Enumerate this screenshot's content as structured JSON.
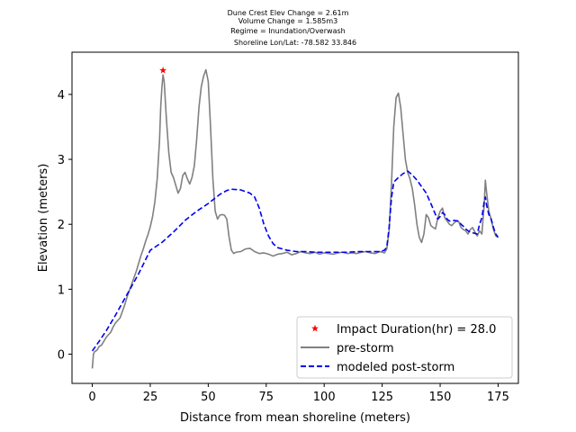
{
  "chart_data": {
    "type": "line",
    "title_lines": [
      "Dune Crest Elev Change = 2.61m",
      "Volume Change = 1.585m3",
      "Regime = Inundation/Overwash",
      "Shoreline Lon/Lat: -78.582 33.846"
    ],
    "xlabel": "Distance from mean shoreline (meters)",
    "ylabel": "Elevation (meters)",
    "xlim": [
      -8.75,
      183.75
    ],
    "ylim": [
      -0.45,
      4.65
    ],
    "x_ticks": [
      0,
      25,
      50,
      75,
      100,
      125,
      150,
      175
    ],
    "y_ticks": [
      0,
      1,
      2,
      3,
      4
    ],
    "legend_position": "lower right",
    "colors": {
      "pre_storm": "#808080",
      "post_storm": "#0000ee",
      "marker": "#ff0000"
    },
    "series": [
      {
        "name": "pre-storm",
        "style": "solid",
        "points": [
          [
            0,
            -0.22
          ],
          [
            0.5,
            0.0
          ],
          [
            1,
            0.04
          ],
          [
            2,
            0.06
          ],
          [
            3,
            0.12
          ],
          [
            4,
            0.14
          ],
          [
            5,
            0.2
          ],
          [
            6,
            0.26
          ],
          [
            7,
            0.3
          ],
          [
            8,
            0.34
          ],
          [
            9,
            0.42
          ],
          [
            10,
            0.48
          ],
          [
            11,
            0.52
          ],
          [
            12,
            0.56
          ],
          [
            13,
            0.66
          ],
          [
            14,
            0.76
          ],
          [
            15,
            0.88
          ],
          [
            16,
            0.98
          ],
          [
            17,
            1.08
          ],
          [
            18,
            1.18
          ],
          [
            19,
            1.28
          ],
          [
            20,
            1.4
          ],
          [
            21,
            1.52
          ],
          [
            22,
            1.62
          ],
          [
            23,
            1.74
          ],
          [
            24,
            1.84
          ],
          [
            25,
            1.96
          ],
          [
            26,
            2.12
          ],
          [
            27,
            2.35
          ],
          [
            28,
            2.7
          ],
          [
            29,
            3.3
          ],
          [
            29.5,
            3.8
          ],
          [
            30,
            4.1
          ],
          [
            30.5,
            4.3
          ],
          [
            31,
            4.2
          ],
          [
            32,
            3.6
          ],
          [
            33,
            3.1
          ],
          [
            34,
            2.8
          ],
          [
            35,
            2.72
          ],
          [
            36,
            2.6
          ],
          [
            37,
            2.48
          ],
          [
            38,
            2.55
          ],
          [
            39,
            2.75
          ],
          [
            40,
            2.8
          ],
          [
            41,
            2.7
          ],
          [
            42,
            2.62
          ],
          [
            43,
            2.72
          ],
          [
            44,
            2.9
          ],
          [
            45,
            3.3
          ],
          [
            46,
            3.8
          ],
          [
            47,
            4.12
          ],
          [
            48,
            4.28
          ],
          [
            49,
            4.38
          ],
          [
            50,
            4.2
          ],
          [
            51,
            3.5
          ],
          [
            52,
            2.7
          ],
          [
            53,
            2.2
          ],
          [
            54,
            2.08
          ],
          [
            55,
            2.14
          ],
          [
            56,
            2.15
          ],
          [
            57,
            2.14
          ],
          [
            58,
            2.08
          ],
          [
            59,
            1.8
          ],
          [
            60,
            1.6
          ],
          [
            61,
            1.55
          ],
          [
            62,
            1.57
          ],
          [
            64,
            1.58
          ],
          [
            66,
            1.62
          ],
          [
            68,
            1.63
          ],
          [
            70,
            1.58
          ],
          [
            72,
            1.55
          ],
          [
            74,
            1.56
          ],
          [
            76,
            1.54
          ],
          [
            78,
            1.51
          ],
          [
            80,
            1.54
          ],
          [
            82,
            1.55
          ],
          [
            84,
            1.57
          ],
          [
            86,
            1.53
          ],
          [
            88,
            1.55
          ],
          [
            90,
            1.58
          ],
          [
            92,
            1.56
          ],
          [
            94,
            1.55
          ],
          [
            96,
            1.57
          ],
          [
            98,
            1.54
          ],
          [
            100,
            1.56
          ],
          [
            102,
            1.55
          ],
          [
            104,
            1.54
          ],
          [
            106,
            1.56
          ],
          [
            108,
            1.57
          ],
          [
            110,
            1.55
          ],
          [
            112,
            1.56
          ],
          [
            114,
            1.55
          ],
          [
            116,
            1.57
          ],
          [
            118,
            1.58
          ],
          [
            120,
            1.56
          ],
          [
            122,
            1.55
          ],
          [
            124,
            1.58
          ],
          [
            126,
            1.56
          ],
          [
            127,
            1.62
          ],
          [
            128,
            1.9
          ],
          [
            129,
            2.6
          ],
          [
            130,
            3.5
          ],
          [
            131,
            3.95
          ],
          [
            132,
            4.02
          ],
          [
            133,
            3.8
          ],
          [
            134,
            3.4
          ],
          [
            135,
            3.0
          ],
          [
            136,
            2.8
          ],
          [
            137,
            2.7
          ],
          [
            138,
            2.55
          ],
          [
            139,
            2.3
          ],
          [
            140,
            2.0
          ],
          [
            141,
            1.8
          ],
          [
            142,
            1.72
          ],
          [
            143,
            1.85
          ],
          [
            144,
            2.15
          ],
          [
            145,
            2.1
          ],
          [
            146,
            1.98
          ],
          [
            147,
            1.95
          ],
          [
            148,
            1.93
          ],
          [
            149,
            2.1
          ],
          [
            150,
            2.2
          ],
          [
            151,
            2.25
          ],
          [
            152,
            2.1
          ],
          [
            153,
            2.05
          ],
          [
            154,
            2.0
          ],
          [
            155,
            1.98
          ],
          [
            156,
            2.02
          ],
          [
            157,
            2.05
          ],
          [
            158,
            2.04
          ],
          [
            159,
            1.95
          ],
          [
            160,
            1.92
          ],
          [
            161,
            1.9
          ],
          [
            162,
            1.85
          ],
          [
            163,
            1.92
          ],
          [
            164,
            1.95
          ],
          [
            165,
            1.88
          ],
          [
            166,
            1.82
          ],
          [
            167,
            1.9
          ],
          [
            168,
            1.85
          ],
          [
            169,
            2.3
          ],
          [
            169.5,
            2.68
          ],
          [
            170,
            2.5
          ],
          [
            171,
            2.2
          ],
          [
            172,
            2.08
          ],
          [
            173,
            1.92
          ],
          [
            174,
            1.82
          ],
          [
            175,
            1.8
          ]
        ]
      },
      {
        "name": "modeled post-storm",
        "style": "dashed",
        "points": [
          [
            0,
            0.05
          ],
          [
            3,
            0.2
          ],
          [
            6,
            0.36
          ],
          [
            10,
            0.6
          ],
          [
            15,
            0.92
          ],
          [
            20,
            1.24
          ],
          [
            25,
            1.6
          ],
          [
            30,
            1.72
          ],
          [
            35,
            1.88
          ],
          [
            40,
            2.06
          ],
          [
            45,
            2.2
          ],
          [
            50,
            2.32
          ],
          [
            55,
            2.46
          ],
          [
            58,
            2.52
          ],
          [
            60,
            2.54
          ],
          [
            64,
            2.53
          ],
          [
            68,
            2.48
          ],
          [
            70,
            2.42
          ],
          [
            72,
            2.25
          ],
          [
            74,
            2.0
          ],
          [
            76,
            1.82
          ],
          [
            78,
            1.7
          ],
          [
            80,
            1.64
          ],
          [
            84,
            1.6
          ],
          [
            88,
            1.58
          ],
          [
            92,
            1.58
          ],
          [
            96,
            1.57
          ],
          [
            100,
            1.57
          ],
          [
            105,
            1.57
          ],
          [
            110,
            1.57
          ],
          [
            115,
            1.58
          ],
          [
            120,
            1.58
          ],
          [
            124,
            1.58
          ],
          [
            126,
            1.6
          ],
          [
            127,
            1.65
          ],
          [
            128,
            1.95
          ],
          [
            129,
            2.4
          ],
          [
            130,
            2.65
          ],
          [
            132,
            2.72
          ],
          [
            134,
            2.78
          ],
          [
            136,
            2.82
          ],
          [
            138,
            2.76
          ],
          [
            140,
            2.68
          ],
          [
            142,
            2.58
          ],
          [
            144,
            2.48
          ],
          [
            146,
            2.32
          ],
          [
            148,
            2.15
          ],
          [
            149,
            2.08
          ],
          [
            150,
            2.12
          ],
          [
            151,
            2.18
          ],
          [
            152,
            2.15
          ],
          [
            153,
            2.08
          ],
          [
            154,
            2.05
          ],
          [
            155,
            2.05
          ],
          [
            156,
            2.06
          ],
          [
            158,
            2.05
          ],
          [
            159,
            2.0
          ],
          [
            160,
            1.97
          ],
          [
            161,
            1.93
          ],
          [
            162,
            1.9
          ],
          [
            163,
            1.88
          ],
          [
            164,
            1.87
          ],
          [
            165,
            1.86
          ],
          [
            166,
            1.85
          ],
          [
            167,
            2.0
          ],
          [
            168,
            2.1
          ],
          [
            169,
            2.35
          ],
          [
            169.5,
            2.42
          ],
          [
            170,
            2.3
          ],
          [
            171,
            2.15
          ],
          [
            172,
            2.08
          ],
          [
            173,
            1.95
          ],
          [
            174,
            1.85
          ],
          [
            175,
            1.8
          ]
        ]
      }
    ],
    "markers": [
      {
        "name": "Impact Duration(hr) = 28.0",
        "x": 30.5,
        "y": 4.37,
        "symbol": "star"
      }
    ],
    "legend": [
      {
        "label": "Impact Duration(hr) = 28.0",
        "kind": "marker"
      },
      {
        "label": "pre-storm",
        "kind": "solid"
      },
      {
        "label": "modeled post-storm",
        "kind": "dashed"
      }
    ]
  }
}
